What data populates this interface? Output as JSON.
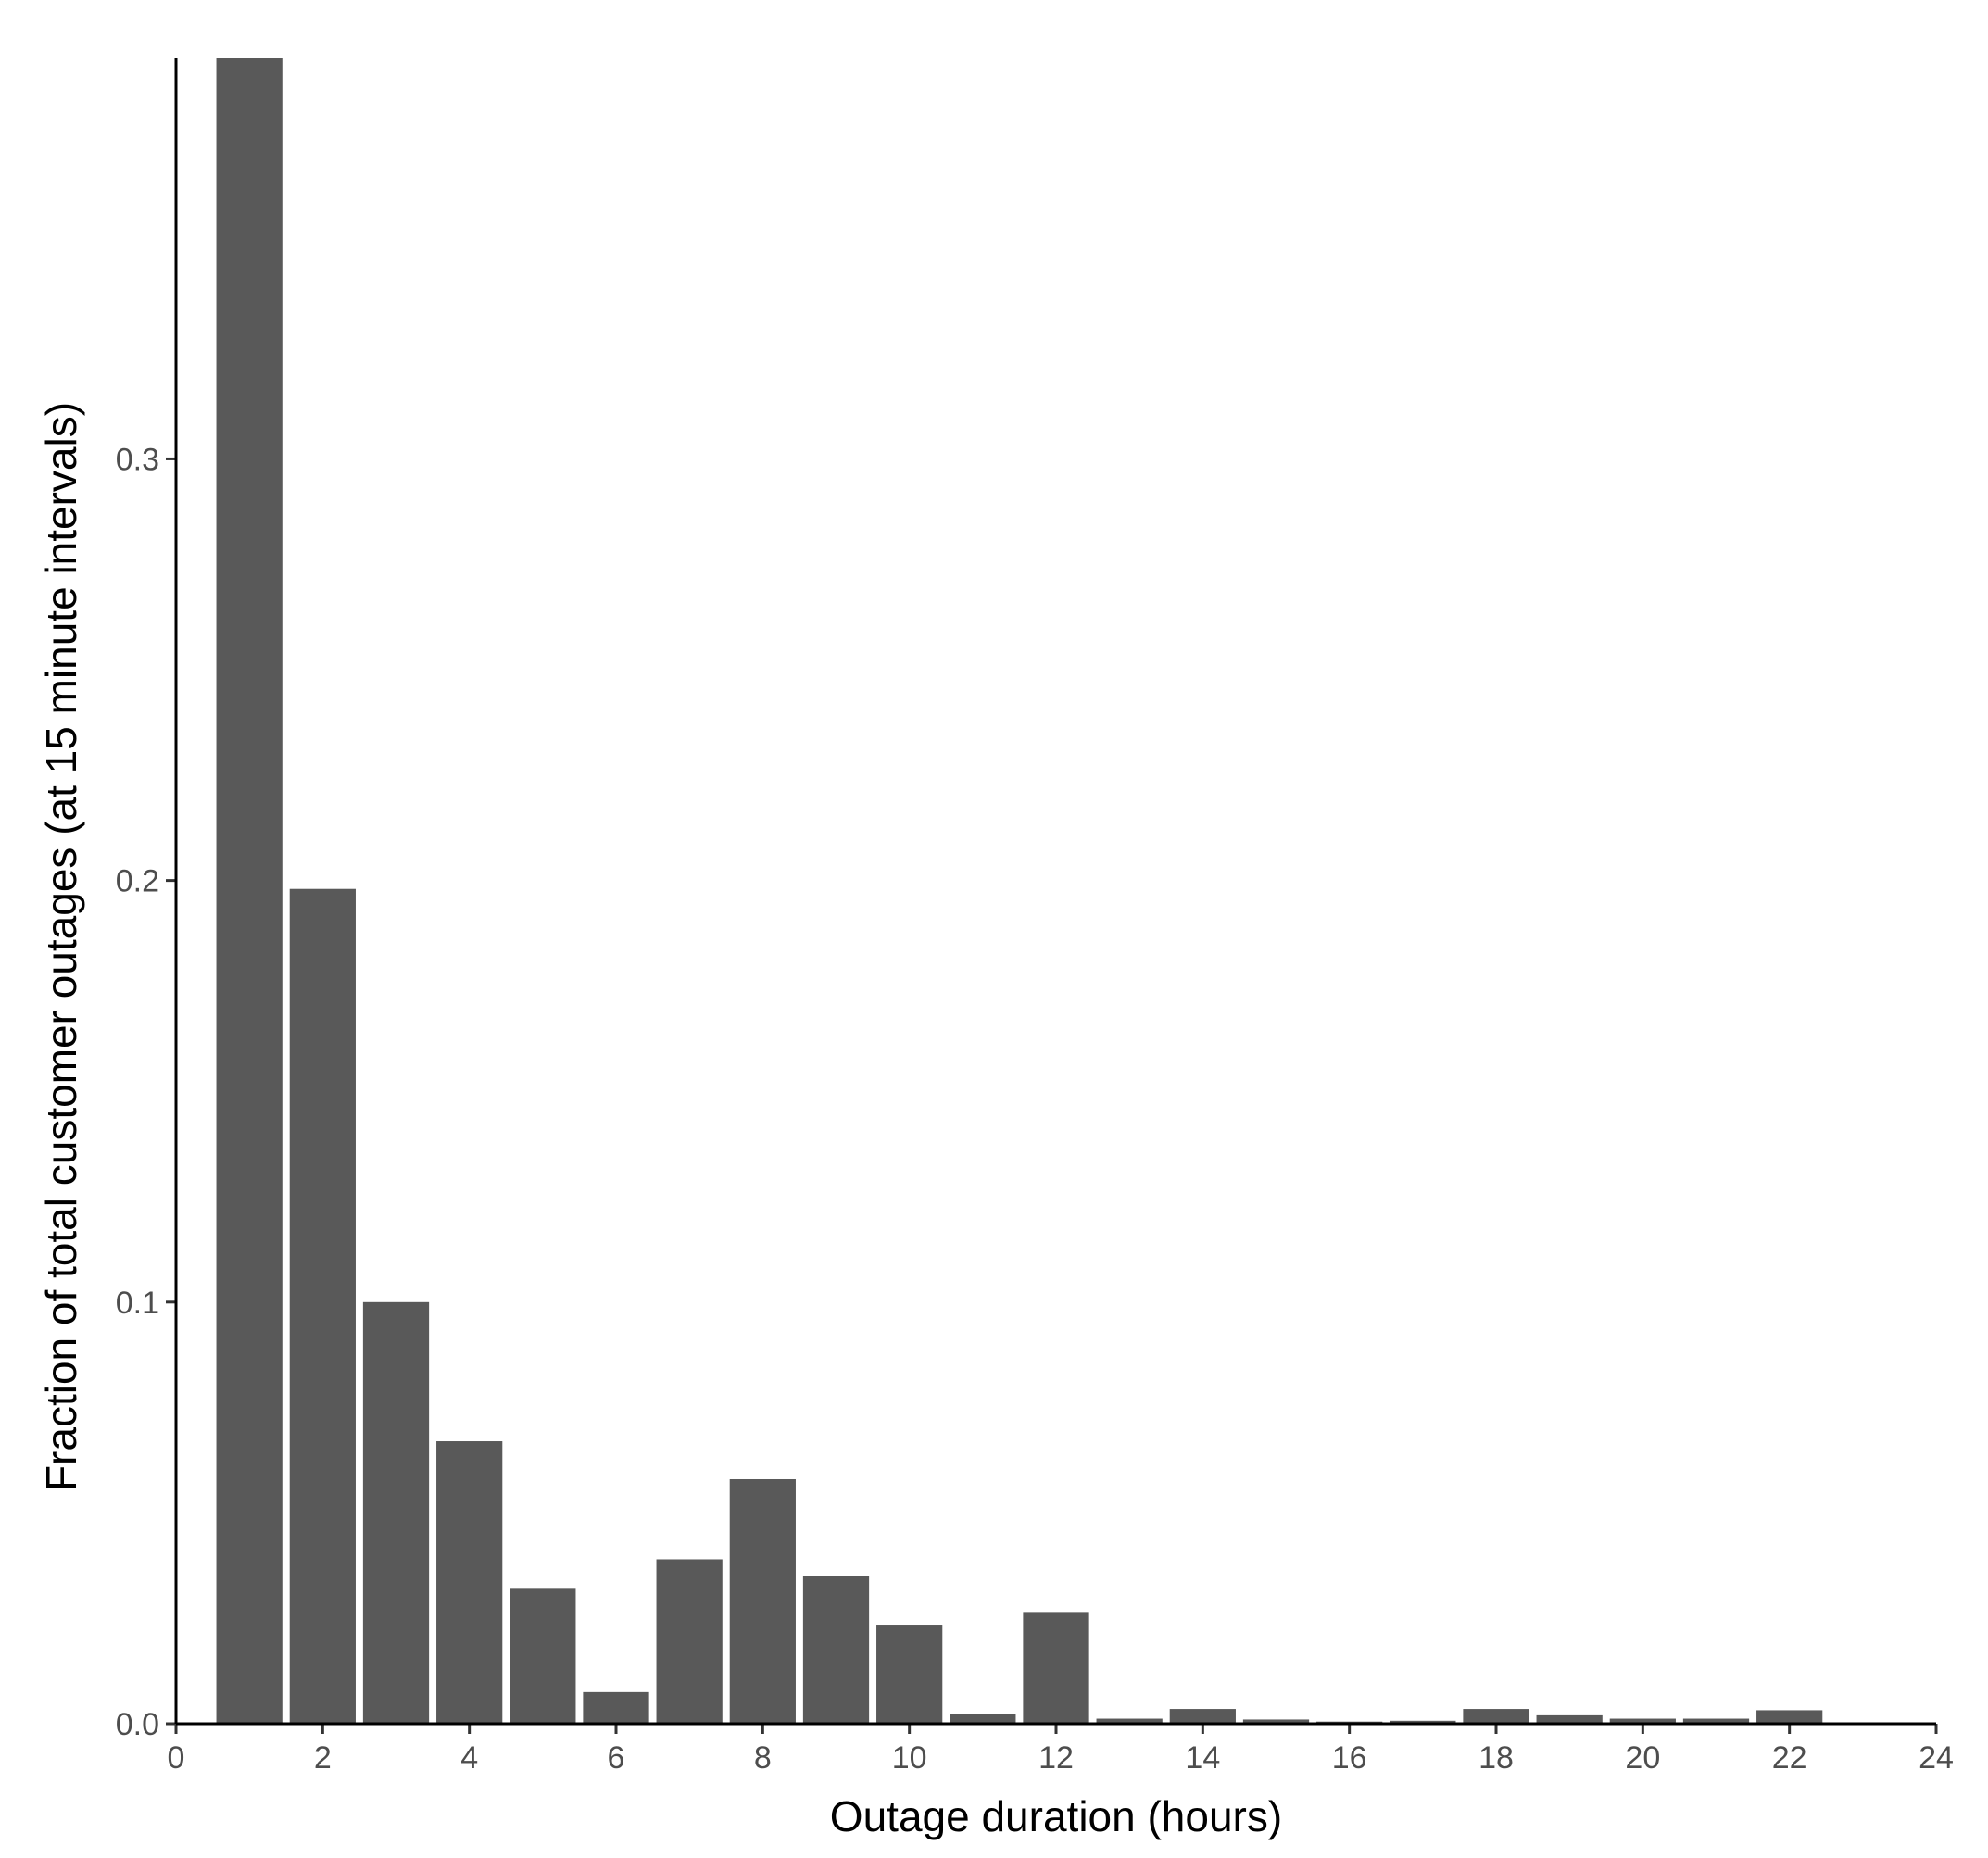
{
  "chart_data": {
    "type": "bar",
    "xlabel": "Outage duration (hours)",
    "ylabel": "Fraction of total customer outages (at 15 minute intervals)",
    "xlim": [
      0,
      24
    ],
    "ylim": [
      0,
      0.395
    ],
    "x_ticks": [
      0,
      2,
      4,
      6,
      8,
      10,
      12,
      14,
      16,
      18,
      20,
      22,
      24
    ],
    "y_ticks": [
      0.0,
      0.1,
      0.2,
      0.3
    ],
    "y_tick_labels": [
      "0.0",
      "0.1",
      "0.2",
      "0.3"
    ],
    "bar_color": "#595959",
    "grid": false,
    "x": [
      1,
      2,
      3,
      4,
      5,
      6,
      7,
      8,
      9,
      10,
      11,
      12,
      13,
      14,
      15,
      16,
      17,
      18,
      19,
      20,
      21,
      22
    ],
    "values": [
      0.395,
      0.198,
      0.1,
      0.067,
      0.032,
      0.0075,
      0.039,
      0.058,
      0.035,
      0.0235,
      0.0022,
      0.0265,
      0.0012,
      0.0035,
      0.001,
      0.0005,
      0.0007,
      0.0035,
      0.002,
      0.0012,
      0.0012,
      0.0032
    ]
  }
}
